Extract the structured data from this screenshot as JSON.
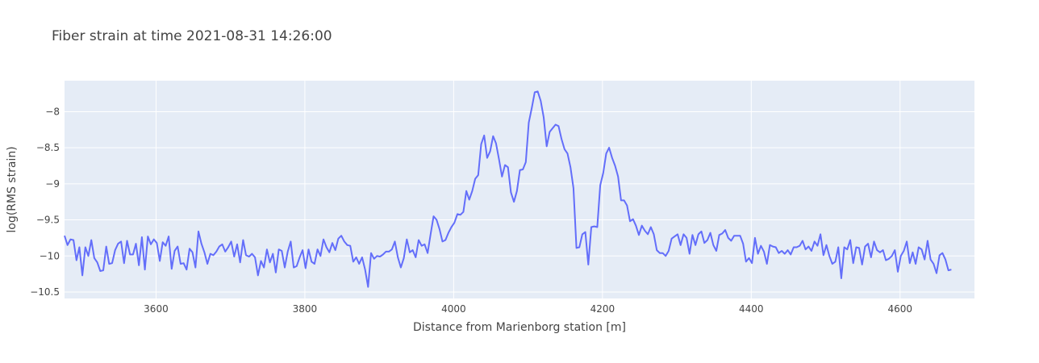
{
  "chart_data": {
    "type": "line",
    "title": "Fiber strain at time 2021-08-31 14:26:00",
    "xlabel": "Distance from Marienborg station [m]",
    "ylabel": "log(RMS strain)",
    "xlim": [
      3477,
      4700
    ],
    "ylim": [
      -10.59,
      -7.57
    ],
    "grid": true,
    "line_color": "#636efa",
    "plot_bg": "#e5ecf6",
    "x_ticks": [
      3600,
      3800,
      4000,
      4200,
      4400,
      4600
    ],
    "x_tick_labels": [
      "3600",
      "3800",
      "4000",
      "4200",
      "4400",
      "4600"
    ],
    "y_ticks": [
      -10.5,
      -10,
      -9.5,
      -9,
      -8.5,
      -8
    ],
    "y_tick_labels": [
      "−10.5",
      "−10",
      "−9.5",
      "−9",
      "−8.5",
      "−8"
    ],
    "x_start": 3477,
    "x_step": 4,
    "values": [
      -9.72,
      -9.85,
      -9.77,
      -9.78,
      -10.06,
      -9.88,
      -10.27,
      -9.88,
      -10.0,
      -9.78,
      -10.03,
      -10.09,
      -10.21,
      -10.2,
      -9.87,
      -10.11,
      -10.1,
      -9.92,
      -9.83,
      -9.8,
      -10.1,
      -9.79,
      -9.98,
      -9.98,
      -9.83,
      -10.13,
      -9.74,
      -10.19,
      -9.73,
      -9.84,
      -9.77,
      -9.82,
      -10.07,
      -9.81,
      -9.86,
      -9.73,
      -10.18,
      -9.93,
      -9.87,
      -10.11,
      -10.1,
      -10.19,
      -9.9,
      -9.95,
      -10.16,
      -9.66,
      -9.83,
      -9.95,
      -10.11,
      -9.97,
      -9.99,
      -9.94,
      -9.87,
      -9.84,
      -9.94,
      -9.88,
      -9.8,
      -10.01,
      -9.84,
      -10.09,
      -9.78,
      -9.99,
      -10.01,
      -9.97,
      -10.02,
      -10.27,
      -10.07,
      -10.16,
      -9.91,
      -10.09,
      -9.97,
      -10.23,
      -9.91,
      -9.93,
      -10.16,
      -9.94,
      -9.8,
      -10.16,
      -10.14,
      -10.02,
      -9.92,
      -10.17,
      -9.91,
      -10.08,
      -10.11,
      -9.91,
      -10.0,
      -9.77,
      -9.88,
      -9.95,
      -9.82,
      -9.92,
      -9.76,
      -9.72,
      -9.8,
      -9.85,
      -9.86,
      -10.08,
      -10.02,
      -10.11,
      -10.02,
      -10.19,
      -10.43,
      -9.96,
      -10.04,
      -10.0,
      -10.01,
      -9.98,
      -9.94,
      -9.94,
      -9.91,
      -9.8,
      -10.02,
      -10.16,
      -10.03,
      -9.77,
      -9.95,
      -9.92,
      -10.02,
      -9.78,
      -9.86,
      -9.84,
      -9.96,
      -9.7,
      -9.45,
      -9.5,
      -9.63,
      -9.8,
      -9.78,
      -9.68,
      -9.6,
      -9.54,
      -9.42,
      -9.43,
      -9.39,
      -9.1,
      -9.22,
      -9.1,
      -8.93,
      -8.88,
      -8.45,
      -8.33,
      -8.64,
      -8.55,
      -8.34,
      -8.44,
      -8.66,
      -8.9,
      -8.74,
      -8.77,
      -9.12,
      -9.25,
      -9.1,
      -8.81,
      -8.8,
      -8.7,
      -8.15,
      -7.95,
      -7.73,
      -7.72,
      -7.85,
      -8.08,
      -8.48,
      -8.28,
      -8.23,
      -8.18,
      -8.2,
      -8.38,
      -8.52,
      -8.58,
      -8.77,
      -9.06,
      -9.89,
      -9.88,
      -9.7,
      -9.67,
      -10.12,
      -9.6,
      -9.59,
      -9.6,
      -9.02,
      -8.85,
      -8.58,
      -8.5,
      -8.64,
      -8.75,
      -8.9,
      -9.23,
      -9.23,
      -9.3,
      -9.52,
      -9.49,
      -9.58,
      -9.71,
      -9.58,
      -9.65,
      -9.7,
      -9.6,
      -9.7,
      -9.92,
      -9.96,
      -9.96,
      -10.0,
      -9.93,
      -9.76,
      -9.73,
      -9.7,
      -9.85,
      -9.7,
      -9.75,
      -9.97,
      -9.71,
      -9.85,
      -9.7,
      -9.66,
      -9.82,
      -9.78,
      -9.68,
      -9.85,
      -9.93,
      -9.71,
      -9.69,
      -9.64,
      -9.75,
      -9.79,
      -9.72,
      -9.72,
      -9.72,
      -9.83,
      -10.08,
      -10.03,
      -10.1,
      -9.75,
      -9.97,
      -9.86,
      -9.94,
      -10.11,
      -9.85,
      -9.87,
      -9.88,
      -9.96,
      -9.93,
      -9.97,
      -9.92,
      -9.98,
      -9.88,
      -9.88,
      -9.86,
      -9.79,
      -9.91,
      -9.87,
      -9.93,
      -9.8,
      -9.86,
      -9.7,
      -9.99,
      -9.85,
      -10.0,
      -10.11,
      -10.08,
      -9.88,
      -10.31,
      -9.88,
      -9.91,
      -9.78,
      -10.1,
      -9.88,
      -9.89,
      -10.12,
      -9.87,
      -9.83,
      -10.02,
      -9.8,
      -9.92,
      -9.95,
      -9.92,
      -10.06,
      -10.04,
      -10.0,
      -9.92,
      -10.22,
      -10.0,
      -9.93,
      -9.8,
      -10.1,
      -9.95,
      -10.11,
      -9.88,
      -9.91,
      -10.05,
      -9.79,
      -10.05,
      -10.11,
      -10.24,
      -9.99,
      -9.96,
      -10.05,
      -10.2,
      -10.19
    ]
  }
}
